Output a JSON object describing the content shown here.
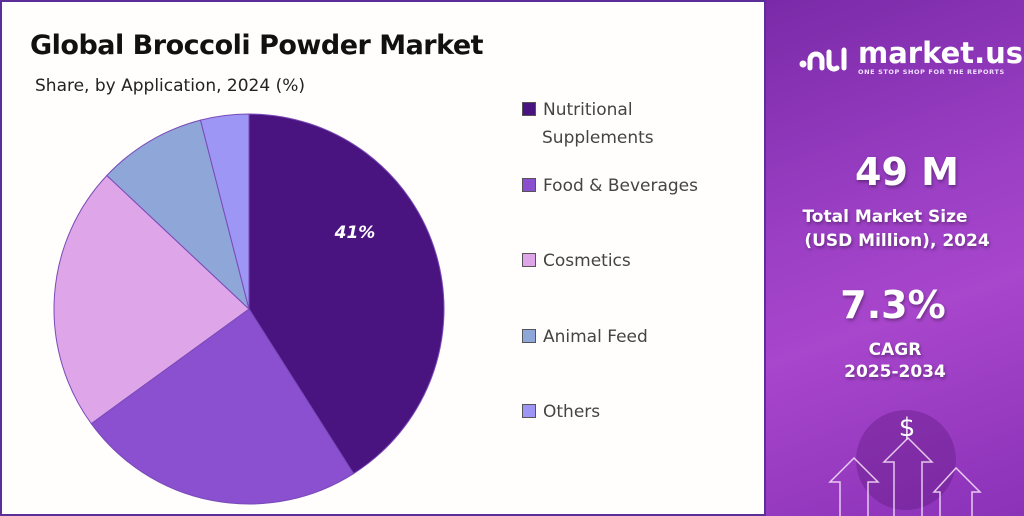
{
  "chart_data": {
    "type": "pie",
    "title": "Global Broccoli Powder Market",
    "subtitle": "Share, by Application, 2024 (%)",
    "categories": [
      "Nutritional Supplements",
      "Food & Beverages",
      "Cosmetics",
      "Animal Feed",
      "Others"
    ],
    "values": [
      41,
      24,
      22,
      9,
      4
    ],
    "colors": [
      "#4a1480",
      "#8a50cf",
      "#dea6e8",
      "#8fa6d8",
      "#9d96f5"
    ],
    "data_labels": [
      {
        "category": "Nutritional Supplements",
        "text": "41%"
      }
    ],
    "legend_placement": "right",
    "legend": [
      "Nutritional",
      "Supplements",
      "Food & Beverages",
      "Cosmetics",
      "Animal Feed",
      "Others"
    ]
  },
  "sidebar": {
    "brand": "market.us",
    "tagline": "ONE STOP SHOP FOR THE REPORTS",
    "market_size": "49 M",
    "market_size_label_1": "Total Market Size",
    "market_size_label_2": "(USD Million), 2024",
    "cagr": "7.3%",
    "cagr_label_1": "CAGR",
    "cagr_label_2": "2025-2034",
    "icon": "dollar-arrows-icon",
    "dollar": "$"
  }
}
